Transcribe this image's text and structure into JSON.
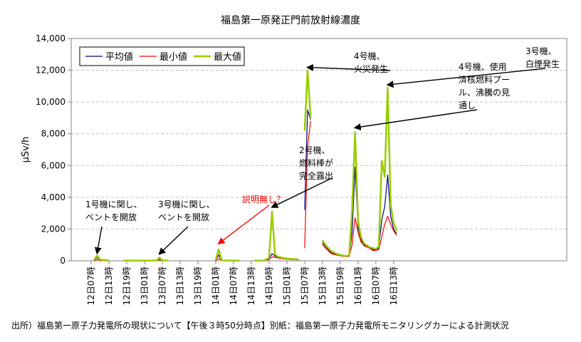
{
  "chart_data": {
    "type": "line",
    "title": "福島第一原発正門前放射線濃度",
    "ylabel": "μSv/h",
    "xlabel": "",
    "ylim": [
      0,
      14000
    ],
    "yticks": [
      0,
      2000,
      4000,
      6000,
      8000,
      10000,
      12000,
      14000
    ],
    "ytick_labels": [
      "0",
      "2,000",
      "4,000",
      "6,000",
      "8,000",
      "10,000",
      "12,000",
      "14,000"
    ],
    "x_hours_range": [
      0,
      103
    ],
    "xticks": [
      {
        "hour": 0,
        "label": "12日07時"
      },
      {
        "hour": 6,
        "label": "12日13時"
      },
      {
        "hour": 12,
        "label": "12日19時"
      },
      {
        "hour": 18,
        "label": "13日01時"
      },
      {
        "hour": 24,
        "label": "13日07時"
      },
      {
        "hour": 30,
        "label": "13日13時"
      },
      {
        "hour": 36,
        "label": "13日19時"
      },
      {
        "hour": 42,
        "label": "14日01時"
      },
      {
        "hour": 48,
        "label": "14日07時"
      },
      {
        "hour": 54,
        "label": "14日13時"
      },
      {
        "hour": 60,
        "label": "14日19時"
      },
      {
        "hour": 66,
        "label": "15日01時"
      },
      {
        "hour": 72,
        "label": "15日07時"
      },
      {
        "hour": 78,
        "label": "15日13時"
      },
      {
        "hour": 84,
        "label": "15日19時"
      },
      {
        "hour": 90,
        "label": "16日01時"
      },
      {
        "hour": 96,
        "label": "16日07時"
      },
      {
        "hour": 102,
        "label": "16日13時"
      }
    ],
    "grid": "horizontal",
    "legend_position": "top-left",
    "series": [
      {
        "name": "平均値",
        "color": "#000080",
        "segments": [
          [
            [
              1,
              40
            ],
            [
              2,
              220
            ],
            [
              3,
              60
            ],
            [
              4,
              40
            ],
            [
              6,
              20
            ]
          ],
          [
            [
              11,
              5
            ],
            [
              22,
              10
            ],
            [
              23,
              120
            ],
            [
              24,
              20
            ],
            [
              26,
              10
            ]
          ],
          [
            [
              42,
              30
            ],
            [
              43,
              360
            ],
            [
              44,
              20
            ],
            [
              46,
              10
            ],
            [
              48,
              10
            ],
            [
              50,
              10
            ]
          ],
          [
            [
              55,
              10
            ],
            [
              58,
              10
            ],
            [
              59,
              60
            ],
            [
              60,
              150
            ],
            [
              61,
              450
            ],
            [
              62,
              300
            ],
            [
              63,
              220
            ],
            [
              65,
              150
            ],
            [
              67,
              100
            ],
            [
              70,
              80
            ]
          ],
          [
            [
              72,
              3200
            ],
            [
              73,
              9500
            ],
            [
              74,
              8900
            ]
          ],
          [
            [
              78,
              1150
            ],
            [
              79,
              900
            ],
            [
              81,
              500
            ],
            [
              83,
              380
            ],
            [
              85,
              300
            ],
            [
              86,
              280
            ],
            [
              87,
              300
            ],
            [
              88,
              1800
            ],
            [
              89,
              5900
            ],
            [
              90,
              2100
            ],
            [
              91,
              1300
            ],
            [
              92,
              1000
            ],
            [
              94,
              800
            ],
            [
              95,
              700
            ],
            [
              96,
              700
            ],
            [
              97,
              800
            ],
            [
              98,
              2600
            ],
            [
              99,
              3400
            ],
            [
              100,
              5400
            ],
            [
              101,
              2800
            ],
            [
              102,
              2000
            ],
            [
              103,
              1700
            ]
          ]
        ]
      },
      {
        "name": "最小値",
        "color": "#ff0000",
        "segments": [
          [
            [
              1,
              20
            ],
            [
              2,
              90
            ],
            [
              3,
              30
            ],
            [
              4,
              20
            ],
            [
              6,
              10
            ]
          ],
          [
            [
              11,
              5
            ],
            [
              22,
              5
            ],
            [
              23,
              70
            ],
            [
              24,
              10
            ],
            [
              26,
              5
            ]
          ],
          [
            [
              42,
              10
            ],
            [
              43,
              150
            ],
            [
              44,
              10
            ],
            [
              46,
              5
            ],
            [
              48,
              5
            ],
            [
              50,
              5
            ]
          ],
          [
            [
              55,
              5
            ],
            [
              58,
              5
            ],
            [
              59,
              30
            ],
            [
              60,
              80
            ],
            [
              61,
              250
            ],
            [
              62,
              220
            ],
            [
              63,
              180
            ],
            [
              65,
              120
            ],
            [
              67,
              80
            ],
            [
              70,
              60
            ]
          ],
          [
            [
              72,
              800
            ],
            [
              73,
              7200
            ],
            [
              74,
              8800
            ]
          ],
          [
            [
              78,
              1050
            ],
            [
              79,
              800
            ],
            [
              81,
              450
            ],
            [
              83,
              350
            ],
            [
              85,
              280
            ],
            [
              86,
              260
            ],
            [
              87,
              280
            ],
            [
              88,
              1000
            ],
            [
              89,
              2700
            ],
            [
              90,
              1800
            ],
            [
              91,
              1200
            ],
            [
              92,
              950
            ],
            [
              94,
              780
            ],
            [
              95,
              650
            ],
            [
              96,
              650
            ],
            [
              97,
              700
            ],
            [
              98,
              1500
            ],
            [
              99,
              2300
            ],
            [
              100,
              2800
            ],
            [
              101,
              2300
            ],
            [
              102,
              1900
            ],
            [
              103,
              1600
            ]
          ]
        ]
      },
      {
        "name": "最大値",
        "color": "#99cc00",
        "segments": [
          [
            [
              1,
              60
            ],
            [
              2,
              330
            ],
            [
              3,
              80
            ],
            [
              4,
              50
            ],
            [
              6,
              30
            ]
          ],
          [
            [
              11,
              10
            ],
            [
              22,
              20
            ],
            [
              23,
              200
            ],
            [
              24,
              30
            ],
            [
              26,
              15
            ]
          ],
          [
            [
              42,
              40
            ],
            [
              43,
              720
            ],
            [
              44,
              30
            ],
            [
              46,
              15
            ],
            [
              48,
              15
            ],
            [
              50,
              15
            ]
          ],
          [
            [
              55,
              15
            ],
            [
              58,
              15
            ],
            [
              59,
              80
            ],
            [
              60,
              200
            ],
            [
              61,
              3100
            ],
            [
              62,
              400
            ],
            [
              63,
              260
            ],
            [
              65,
              170
            ],
            [
              67,
              120
            ],
            [
              70,
              90
            ]
          ],
          [
            [
              72,
              8200
            ],
            [
              73,
              12000
            ],
            [
              74,
              9000
            ]
          ],
          [
            [
              78,
              1300
            ],
            [
              79,
              1000
            ],
            [
              81,
              600
            ],
            [
              83,
              420
            ],
            [
              85,
              330
            ],
            [
              86,
              300
            ],
            [
              87,
              350
            ],
            [
              88,
              3200
            ],
            [
              89,
              8100
            ],
            [
              90,
              2500
            ],
            [
              91,
              1500
            ],
            [
              92,
              1100
            ],
            [
              94,
              850
            ],
            [
              95,
              800
            ],
            [
              96,
              750
            ],
            [
              97,
              900
            ],
            [
              98,
              6300
            ],
            [
              99,
              5300
            ],
            [
              100,
              10900
            ],
            [
              101,
              3500
            ],
            [
              102,
              2400
            ],
            [
              103,
              1900
            ]
          ]
        ]
      }
    ],
    "annotations": [
      {
        "id": "ann1",
        "lines": [
          "1号機に関し、",
          "ベントを開放"
        ],
        "color": "#000000",
        "arrow_to_hour": 2,
        "arrow_to_value": 300
      },
      {
        "id": "ann2",
        "lines": [
          "3号機に関し、",
          "ベントを開放"
        ],
        "color": "#000000",
        "arrow_to_hour": 23,
        "arrow_to_value": 250
      },
      {
        "id": "ann3",
        "lines": [
          "説明無し？"
        ],
        "color": "#ff0000",
        "arrow_to_hour": 43,
        "arrow_to_value": 900
      },
      {
        "id": "ann4",
        "lines": [
          "2号機、",
          "燃料棒が",
          "完全露出"
        ],
        "color": "#000000",
        "arrow_to_hour": 61,
        "arrow_to_value": 3200
      },
      {
        "id": "ann5",
        "lines": [
          "4号機、",
          "火災発生"
        ],
        "color": "#000000",
        "arrow_to_hour": 73,
        "arrow_to_value": 12000
      },
      {
        "id": "ann6",
        "lines": [
          "4号機、使用",
          "済核燃料プー",
          "ル、沸騰の見",
          "通し"
        ],
        "color": "#000000",
        "arrow_to_hour": 89,
        "arrow_to_value": 8200
      },
      {
        "id": "ann7",
        "lines": [
          "3号機、",
          "白煙発生"
        ],
        "color": "#000000",
        "arrow_to_hour": 100,
        "arrow_to_value": 10900
      }
    ]
  },
  "footnote": "出所）福島第一原子力発電所の現状について【午後３時50分時点】別紙：福島第一原子力発電所モニタリングカーによる計測状況"
}
